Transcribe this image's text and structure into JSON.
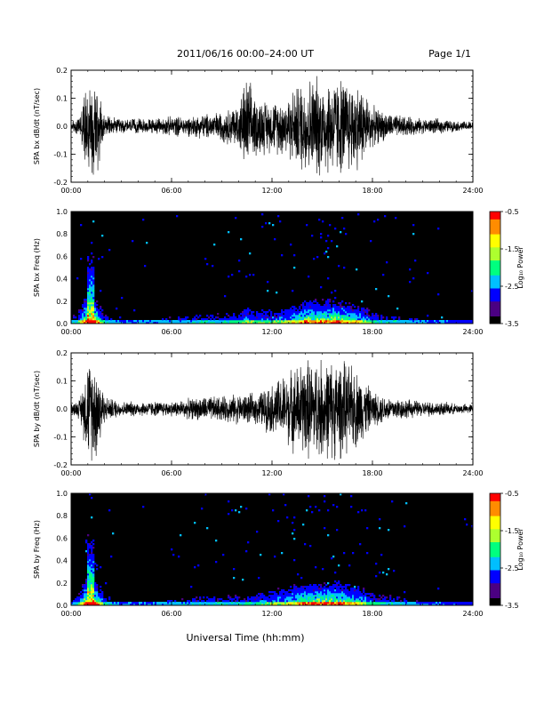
{
  "header": {
    "title": "2011/06/16  00:00–24:00 UT",
    "page": "Page 1/1"
  },
  "colors": {
    "trace": "#000000",
    "spectrogram_background": "#000000",
    "colormap": [
      "#000000",
      "#4b0082",
      "#0000ff",
      "#00bfff",
      "#00ff7f",
      "#adff2f",
      "#ffff00",
      "#ff8c00",
      "#ff0000"
    ]
  },
  "colorbar": {
    "label": "Log₁₀ Power",
    "ticks": [
      "-0.5",
      "-1.5",
      "-2.5",
      "-3.5"
    ],
    "range": [
      -3.5,
      -0.5
    ]
  },
  "xlabel": "Universal Time (hh:mm)",
  "chart_data": [
    {
      "type": "line",
      "ylabel": "SPA bx dB/dt (nT/sec)",
      "xlim": [
        0,
        24
      ],
      "ylim": [
        -0.2,
        0.2
      ],
      "x_ticks": [
        "00:00",
        "06:00",
        "12:00",
        "18:00",
        "24:00"
      ],
      "y_ticks": [
        "-0.2",
        "-0.1",
        "0.0",
        "0.1",
        "0.2"
      ],
      "envelope": {
        "x": [
          0,
          0.5,
          1.0,
          1.3,
          1.6,
          2,
          3,
          4,
          5,
          6,
          7,
          8,
          9,
          10,
          10.5,
          11,
          12,
          13,
          14,
          15,
          16,
          17,
          17.5,
          18,
          19,
          20,
          21,
          22,
          23,
          24
        ],
        "amplitude": [
          0.02,
          0.04,
          0.2,
          0.2,
          0.2,
          0.04,
          0.03,
          0.03,
          0.03,
          0.04,
          0.04,
          0.05,
          0.06,
          0.09,
          0.2,
          0.12,
          0.1,
          0.13,
          0.2,
          0.2,
          0.2,
          0.18,
          0.15,
          0.08,
          0.05,
          0.04,
          0.03,
          0.03,
          0.02,
          0.02
        ]
      }
    },
    {
      "type": "heatmap",
      "ylabel": "SPA bx Freq (Hz)",
      "xlim": [
        0,
        24
      ],
      "ylim": [
        0,
        1.0
      ],
      "x_ticks": [
        "00:00",
        "06:00",
        "12:00",
        "18:00",
        "24:00"
      ],
      "y_ticks": [
        "0.0",
        "0.2",
        "0.4",
        "0.6",
        "0.8",
        "1.0"
      ],
      "activity": {
        "x": [
          0,
          0.5,
          1.0,
          1.3,
          1.6,
          2,
          3,
          4,
          5,
          6,
          7,
          8,
          9,
          10,
          10.5,
          11,
          12,
          13,
          14,
          15,
          16,
          17,
          17.5,
          18,
          19,
          20,
          21,
          22,
          23,
          24
        ],
        "level": [
          0.2,
          0.4,
          1.0,
          0.95,
          0.7,
          0.3,
          0.2,
          0.2,
          0.2,
          0.25,
          0.25,
          0.3,
          0.3,
          0.35,
          0.5,
          0.4,
          0.4,
          0.5,
          0.75,
          0.8,
          0.8,
          0.6,
          0.5,
          0.35,
          0.3,
          0.25,
          0.2,
          0.2,
          0.15,
          0.15
        ]
      }
    },
    {
      "type": "line",
      "ylabel": "SPA by dB/dt (nT/sec)",
      "xlim": [
        0,
        24
      ],
      "ylim": [
        -0.2,
        0.2
      ],
      "x_ticks": [
        "00:00",
        "06:00",
        "12:00",
        "18:00",
        "24:00"
      ],
      "y_ticks": [
        "-0.2",
        "-0.1",
        "0.0",
        "0.1",
        "0.2"
      ],
      "envelope": {
        "x": [
          0,
          0.5,
          1.0,
          1.3,
          1.6,
          2,
          3,
          4,
          5,
          6,
          7,
          8,
          9,
          10,
          11,
          12,
          13,
          14,
          15,
          16,
          17,
          17.5,
          18,
          19,
          20,
          21,
          22,
          23,
          24
        ],
        "amplitude": [
          0.02,
          0.04,
          0.2,
          0.2,
          0.2,
          0.05,
          0.03,
          0.03,
          0.03,
          0.03,
          0.04,
          0.05,
          0.05,
          0.06,
          0.06,
          0.1,
          0.15,
          0.2,
          0.2,
          0.2,
          0.16,
          0.12,
          0.07,
          0.05,
          0.04,
          0.03,
          0.03,
          0.02,
          0.02
        ]
      }
    },
    {
      "type": "heatmap",
      "ylabel": "SPA by Freq (Hz)",
      "xlim": [
        0,
        24
      ],
      "ylim": [
        0,
        1.0
      ],
      "x_ticks": [
        "00:00",
        "06:00",
        "12:00",
        "18:00",
        "24:00"
      ],
      "y_ticks": [
        "0.0",
        "0.2",
        "0.4",
        "0.6",
        "0.8",
        "1.0"
      ],
      "activity": {
        "x": [
          0,
          0.5,
          1.0,
          1.3,
          1.6,
          2,
          3,
          4,
          5,
          6,
          7,
          8,
          9,
          10,
          11,
          12,
          13,
          14,
          15,
          16,
          17,
          17.5,
          18,
          19,
          20,
          21,
          22,
          23,
          24
        ],
        "level": [
          0.2,
          0.4,
          1.0,
          0.95,
          0.7,
          0.3,
          0.2,
          0.2,
          0.2,
          0.25,
          0.25,
          0.3,
          0.3,
          0.3,
          0.35,
          0.45,
          0.55,
          0.75,
          0.8,
          0.8,
          0.6,
          0.5,
          0.35,
          0.3,
          0.25,
          0.2,
          0.2,
          0.15,
          0.15
        ]
      }
    }
  ]
}
